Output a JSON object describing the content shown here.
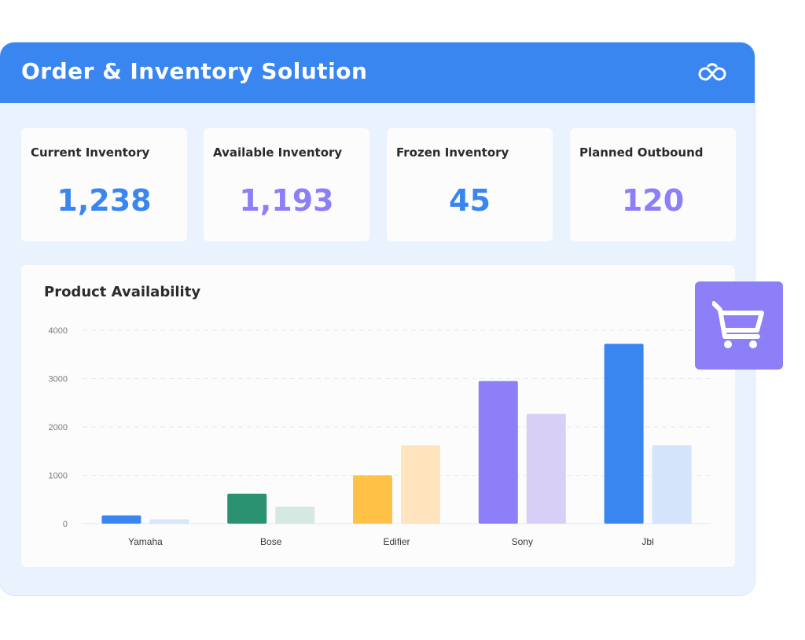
{
  "header": {
    "title": "Order & Inventory Solution",
    "logo_icon": "link-infinity-icon"
  },
  "stats": [
    {
      "label": "Current Inventory",
      "value": "1,238",
      "color": "#3a86f0"
    },
    {
      "label": "Available Inventory",
      "value": "1,193",
      "color": "#8c7ff7"
    },
    {
      "label": "Frozen Inventory",
      "value": "45",
      "color": "#3a86f0"
    },
    {
      "label": "Planned Outbound",
      "value": "120",
      "color": "#8c7ff7"
    }
  ],
  "chart": {
    "title": "Product Availability"
  },
  "cart_icon": "shopping-cart-icon",
  "chart_data": {
    "type": "bar",
    "categories": [
      "Yamaha",
      "Bose",
      "Edifier",
      "Sony",
      "Jbl"
    ],
    "ylim": [
      0,
      4000
    ],
    "yticks": [
      0,
      1000,
      2000,
      3000,
      4000
    ],
    "grid": true,
    "series": [
      {
        "values": [
          170,
          620,
          1000,
          2950,
          3720
        ]
      },
      {
        "values": [
          90,
          350,
          1620,
          2270,
          1620
        ]
      }
    ],
    "colors": [
      [
        "#3a86f0",
        "#2a9270",
        "#ffc247",
        "#8c7ff7",
        "#3a86f0"
      ],
      [
        "#d6e6fb",
        "#d5e9e2",
        "#ffe4bd",
        "#d7cff6",
        "#d3e4fb"
      ]
    ]
  }
}
